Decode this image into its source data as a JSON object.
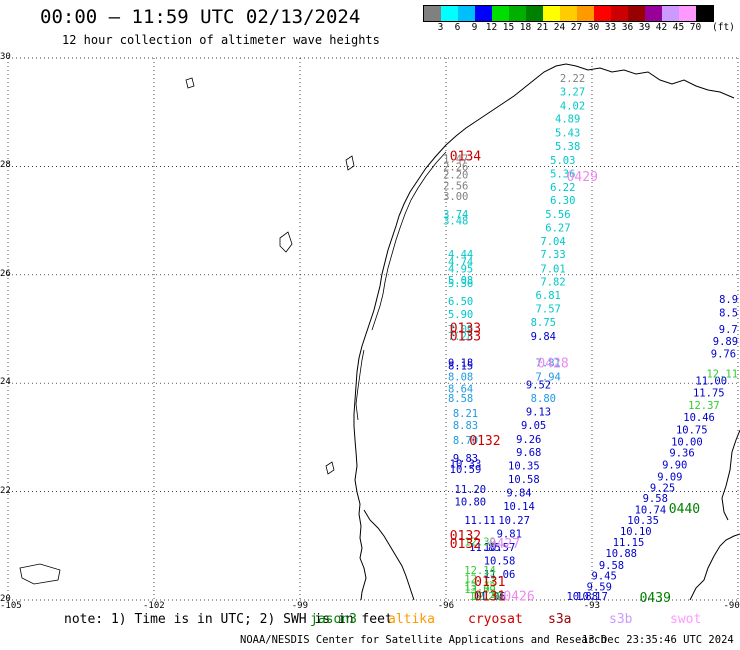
{
  "header": {
    "title": "00:00 – 11:59 UTC 02/13/2024",
    "subtitle": "12 hour collection of altimeter wave heights"
  },
  "colorbar": {
    "units": "(ft)",
    "swatches": [
      {
        "color": "#808080",
        "label": "3"
      },
      {
        "color": "#00ffff",
        "label": "6"
      },
      {
        "color": "#00bfff",
        "label": "9"
      },
      {
        "color": "#0000ff",
        "label": "12"
      },
      {
        "color": "#00dd00",
        "label": "15"
      },
      {
        "color": "#00b000",
        "label": "18"
      },
      {
        "color": "#008000",
        "label": "21"
      },
      {
        "color": "#ffff00",
        "label": "24"
      },
      {
        "color": "#ffcc00",
        "label": "27"
      },
      {
        "color": "#ff9900",
        "label": "30"
      },
      {
        "color": "#ff0000",
        "label": "33"
      },
      {
        "color": "#cc0000",
        "label": "36"
      },
      {
        "color": "#990000",
        "label": "39"
      },
      {
        "color": "#990099",
        "label": "42"
      },
      {
        "color": "#cc99ff",
        "label": "45"
      },
      {
        "color": "#ff99ff",
        "label": "70"
      },
      {
        "color": "#000000",
        "label": ""
      }
    ]
  },
  "map": {
    "lon_range": [
      -105,
      -90
    ],
    "lat_range": [
      20,
      30
    ],
    "lon_labels": [
      "-105",
      "-102",
      "-99",
      "-96",
      "-93",
      "-90"
    ],
    "lat_labels": [
      "30",
      "28",
      "26",
      "24",
      "22",
      "20"
    ],
    "gridlines": true
  },
  "passes": [
    {
      "name": "0134",
      "color": "#cc0000",
      "lon": -95.6,
      "lat": 28.2
    },
    {
      "name": "0429",
      "color": "#ee88ee",
      "lon": -93.2,
      "lat": 27.82
    },
    {
      "name": "0133",
      "color": "#cc0000",
      "lon": -95.6,
      "lat": 25.03
    },
    {
      "name": "0133",
      "color": "#cc0000",
      "lon": -95.6,
      "lat": 24.88
    },
    {
      "name": "0428",
      "color": "#ee88ee",
      "lon": -93.8,
      "lat": 24.38
    },
    {
      "name": "0132",
      "color": "#cc0000",
      "lon": -95.2,
      "lat": 22.95
    },
    {
      "name": "0440",
      "color": "#008000",
      "lon": -91.1,
      "lat": 21.7
    },
    {
      "name": "0132",
      "color": "#cc0000",
      "lon": -95.6,
      "lat": 21.2
    },
    {
      "name": "0132",
      "color": "#cc0000",
      "lon": -95.6,
      "lat": 21.05
    },
    {
      "name": "0427",
      "color": "#ee88ee",
      "lon": -94.8,
      "lat": 21.05
    },
    {
      "name": "0131",
      "color": "#cc0000",
      "lon": -95.1,
      "lat": 20.35
    },
    {
      "name": "0131",
      "color": "#cc0000",
      "lon": -95.1,
      "lat": 20.08
    },
    {
      "name": "0426",
      "color": "#ee88ee",
      "lon": -94.5,
      "lat": 20.08
    },
    {
      "name": "0439",
      "color": "#008000",
      "lon": -91.7,
      "lat": 20.0
    }
  ],
  "tracks": [
    {
      "color": "#808080",
      "points": [
        {
          "lon": -95.8,
          "lat": 28.15,
          "v": "1.47"
        },
        {
          "lon": -95.8,
          "lat": 28.0,
          "v": "2.26"
        },
        {
          "lon": -95.8,
          "lat": 27.85,
          "v": "2.20"
        },
        {
          "lon": -95.8,
          "lat": 27.65,
          "v": "2.56"
        },
        {
          "lon": -95.8,
          "lat": 27.45,
          "v": "3.00"
        },
        {
          "lon": -93.4,
          "lat": 29.63,
          "v": "2.22"
        }
      ]
    },
    {
      "color": "#00c8c8",
      "points": [
        {
          "lon": -93.4,
          "lat": 29.38,
          "v": "3.27"
        },
        {
          "lon": -93.4,
          "lat": 29.12,
          "v": "4.02"
        },
        {
          "lon": -93.5,
          "lat": 28.88,
          "v": "4.89"
        },
        {
          "lon": -93.5,
          "lat": 28.63,
          "v": "5.43"
        },
        {
          "lon": -93.5,
          "lat": 28.38,
          "v": "5.38"
        },
        {
          "lon": -93.6,
          "lat": 28.12,
          "v": "5.03"
        },
        {
          "lon": -93.6,
          "lat": 27.87,
          "v": "5.36"
        },
        {
          "lon": -93.6,
          "lat": 27.62,
          "v": "6.22"
        },
        {
          "lon": -93.6,
          "lat": 27.38,
          "v": "6.30"
        },
        {
          "lon": -93.7,
          "lat": 27.12,
          "v": "5.56"
        },
        {
          "lon": -93.7,
          "lat": 26.87,
          "v": "6.27"
        },
        {
          "lon": -93.8,
          "lat": 26.62,
          "v": "7.04"
        },
        {
          "lon": -93.8,
          "lat": 26.38,
          "v": "7.33"
        },
        {
          "lon": -93.8,
          "lat": 26.12,
          "v": "7.01"
        },
        {
          "lon": -93.8,
          "lat": 25.88,
          "v": "7.82"
        },
        {
          "lon": -93.9,
          "lat": 25.63,
          "v": "6.81"
        },
        {
          "lon": -93.9,
          "lat": 25.38,
          "v": "7.57"
        },
        {
          "lon": -94.0,
          "lat": 25.13,
          "v": "8.75"
        },
        {
          "lon": -95.8,
          "lat": 27.12,
          "v": "3.74"
        },
        {
          "lon": -95.8,
          "lat": 27.0,
          "v": "3.48"
        },
        {
          "lon": -95.7,
          "lat": 26.38,
          "v": "4.44"
        },
        {
          "lon": -95.7,
          "lat": 26.25,
          "v": "4.74"
        },
        {
          "lon": -95.7,
          "lat": 26.12,
          "v": "4.95"
        },
        {
          "lon": -95.7,
          "lat": 25.9,
          "v": "5.08"
        },
        {
          "lon": -95.7,
          "lat": 25.85,
          "v": "5.36"
        },
        {
          "lon": -95.7,
          "lat": 25.52,
          "v": "6.50"
        },
        {
          "lon": -95.7,
          "lat": 25.28,
          "v": "5.90"
        },
        {
          "lon": -95.7,
          "lat": 25.0,
          "v": "7.09"
        },
        {
          "lon": -95.7,
          "lat": 24.87,
          "v": "7.28"
        }
      ]
    },
    {
      "color": "#1e9be0",
      "points": [
        {
          "lon": -93.9,
          "lat": 24.38,
          "v": "7.81"
        },
        {
          "lon": -93.9,
          "lat": 24.12,
          "v": "7.94"
        },
        {
          "lon": -95.7,
          "lat": 24.12,
          "v": "8.08"
        },
        {
          "lon": -95.7,
          "lat": 23.9,
          "v": "8.64"
        },
        {
          "lon": -95.7,
          "lat": 23.73,
          "v": "8.58"
        },
        {
          "lon": -95.6,
          "lat": 23.45,
          "v": "8.21"
        },
        {
          "lon": -95.6,
          "lat": 23.23,
          "v": "8.83"
        },
        {
          "lon": -95.6,
          "lat": 22.95,
          "v": "8.70"
        },
        {
          "lon": -94.0,
          "lat": 23.73,
          "v": "8.80"
        }
      ]
    },
    {
      "color": "#0000cc",
      "points": [
        {
          "lon": -95.7,
          "lat": 24.38,
          "v": "9.18"
        },
        {
          "lon": -95.7,
          "lat": 24.33,
          "v": "8.15"
        },
        {
          "lon": -94.0,
          "lat": 24.87,
          "v": "9.84"
        },
        {
          "lon": -94.1,
          "lat": 23.98,
          "v": "9.52"
        },
        {
          "lon": -94.1,
          "lat": 23.48,
          "v": "9.13"
        },
        {
          "lon": -94.2,
          "lat": 23.23,
          "v": "9.05"
        },
        {
          "lon": -94.3,
          "lat": 22.97,
          "v": "9.26"
        },
        {
          "lon": -94.3,
          "lat": 22.73,
          "v": "9.68"
        },
        {
          "lon": -94.4,
          "lat": 22.48,
          "v": "10.35"
        },
        {
          "lon": -94.4,
          "lat": 22.23,
          "v": "10.58"
        },
        {
          "lon": -94.5,
          "lat": 21.98,
          "v": "9.84"
        },
        {
          "lon": -94.5,
          "lat": 21.73,
          "v": "10.14"
        },
        {
          "lon": -94.6,
          "lat": 21.48,
          "v": "10.27"
        },
        {
          "lon": -95.6,
          "lat": 22.62,
          "v": "9.83"
        },
        {
          "lon": -95.6,
          "lat": 22.52,
          "v": "10.33"
        },
        {
          "lon": -95.6,
          "lat": 22.42,
          "v": "10.59"
        },
        {
          "lon": -95.5,
          "lat": 22.05,
          "v": "11.20"
        },
        {
          "lon": -95.5,
          "lat": 21.82,
          "v": "10.80"
        },
        {
          "lon": -95.3,
          "lat": 21.48,
          "v": "11.11"
        },
        {
          "lon": -94.7,
          "lat": 21.23,
          "v": "9.81"
        },
        {
          "lon": -95.2,
          "lat": 20.98,
          "v": "11.85"
        },
        {
          "lon": -94.9,
          "lat": 20.98,
          "v": "10.57"
        },
        {
          "lon": -94.9,
          "lat": 20.73,
          "v": "10.58"
        },
        {
          "lon": -94.9,
          "lat": 20.48,
          "v": "11.06"
        },
        {
          "lon": -95.1,
          "lat": 20.0,
          "v": "11.06"
        },
        {
          "lon": -90.1,
          "lat": 25.55,
          "v": "8.9"
        },
        {
          "lon": -90.15,
          "lat": 25.3,
          "v": "8.5"
        },
        {
          "lon": -90.2,
          "lat": 25.0,
          "v": "9.7"
        },
        {
          "lon": -90.25,
          "lat": 24.78,
          "v": "9.89"
        },
        {
          "lon": -90.3,
          "lat": 24.55,
          "v": "9.76"
        },
        {
          "lon": -90.55,
          "lat": 24.05,
          "v": "11.00"
        },
        {
          "lon": -90.6,
          "lat": 23.83,
          "v": "11.75"
        },
        {
          "lon": -90.8,
          "lat": 23.38,
          "v": "10.46"
        },
        {
          "lon": -90.95,
          "lat": 23.15,
          "v": "10.75"
        },
        {
          "lon": -91.05,
          "lat": 22.92,
          "v": "10.00"
        },
        {
          "lon": -91.15,
          "lat": 22.72,
          "v": "9.36"
        },
        {
          "lon": -91.3,
          "lat": 22.5,
          "v": "9.90"
        },
        {
          "lon": -91.4,
          "lat": 22.28,
          "v": "9.09"
        },
        {
          "lon": -91.55,
          "lat": 22.08,
          "v": "9.25"
        },
        {
          "lon": -91.7,
          "lat": 21.88,
          "v": "9.58"
        },
        {
          "lon": -91.8,
          "lat": 21.67,
          "v": "10.74"
        },
        {
          "lon": -91.95,
          "lat": 21.48,
          "v": "10.35"
        },
        {
          "lon": -92.1,
          "lat": 21.27,
          "v": "10.10"
        },
        {
          "lon": -92.25,
          "lat": 21.07,
          "v": "11.15"
        },
        {
          "lon": -92.4,
          "lat": 20.87,
          "v": "10.88"
        },
        {
          "lon": -92.6,
          "lat": 20.65,
          "v": "9.58"
        },
        {
          "lon": -92.75,
          "lat": 20.45,
          "v": "9.45"
        },
        {
          "lon": -92.85,
          "lat": 20.25,
          "v": "9.59"
        },
        {
          "lon": -93.0,
          "lat": 20.05,
          "v": "10.17"
        },
        {
          "lon": -93.2,
          "lat": 19.85,
          "v": "10.88"
        }
      ]
    },
    {
      "color": "#33cc33",
      "points": [
        {
          "lon": -95.3,
          "lat": 21.08,
          "v": "12.39"
        },
        {
          "lon": -90.15,
          "lat": 24.18,
          "v": "12.11"
        },
        {
          "lon": -90.7,
          "lat": 23.6,
          "v": "12.37"
        },
        {
          "lon": -95.3,
          "lat": 20.55,
          "v": "12.14"
        },
        {
          "lon": -95.3,
          "lat": 20.4,
          "v": "12.13"
        },
        {
          "lon": -95.3,
          "lat": 20.25,
          "v": "13.43"
        },
        {
          "lon": -95.3,
          "lat": 20.2,
          "v": "13.09"
        },
        {
          "lon": -95.2,
          "lat": 20.0,
          "v": "12.26"
        },
        {
          "lon": -95.15,
          "lat": 19.93,
          "v": "12.42"
        }
      ]
    }
  ],
  "note": {
    "prefix": "note: 1) Time is in UTC; 2) SWH is in feet",
    "sat_jason3": {
      "label": "jason3",
      "color": "#008000"
    },
    "sat_altika": {
      "label": "altika",
      "color": "#ff9900"
    },
    "sat_cryosat": {
      "label": "cryosat",
      "color": "#cc0000"
    },
    "sat_s3a": {
      "label": "s3a",
      "color": "#990000"
    },
    "sat_s3b": {
      "label": "s3b",
      "color": "#cc99ff"
    },
    "sat_swot": {
      "label": "swot",
      "color": "#ff99ff"
    }
  },
  "footer": {
    "credit": "NOAA/NESDIS Center for Satellite Applications and Research",
    "stamp": "13 Dec 23:35:46 UTC 2024"
  }
}
